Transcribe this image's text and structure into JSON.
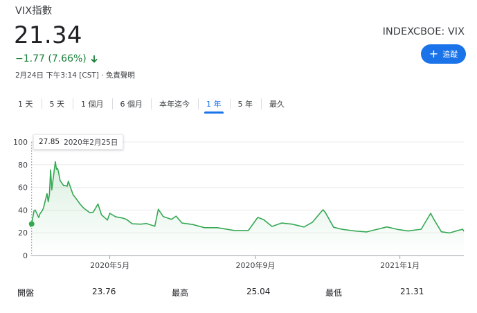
{
  "header": {
    "title": "VIX指數",
    "price": "21.34",
    "change": "−1.77 (7.66%)",
    "timestamp": "2月24日 下午3:14 [CST] · 免責聲明",
    "exchange": "INDEXCBOE: VIX",
    "follow_label": "追蹤",
    "follow_icon": "plus-icon",
    "change_color": "#188038",
    "accent_color": "#1a73e8"
  },
  "ranges": [
    "1 天",
    "5 天",
    "1 個月",
    "6 個月",
    "本年迄今",
    "1 年",
    "5 年",
    "最久"
  ],
  "active_range": "1 年",
  "tooltip": {
    "value": "27.85",
    "date": "2020年2月25日"
  },
  "stats": {
    "open_label": "開盤",
    "open_value": "23.76",
    "high_label": "最高",
    "high_value": "25.04",
    "low_label": "最低",
    "low_value": "21.31"
  },
  "chart_data": {
    "type": "line",
    "line_color": "#34a853",
    "ylim": [
      0,
      100
    ],
    "yticks": [
      0,
      20,
      40,
      60,
      80,
      100
    ],
    "xtick_labels": [
      "2020年5月",
      "2020年9月",
      "2021年1月"
    ],
    "xtick_dates": [
      "2020-05-01",
      "2020-09-01",
      "2021-01-01"
    ],
    "xlim": [
      "2020-02-24",
      "2021-02-24"
    ],
    "grid": true,
    "highlight": {
      "date": "2020-02-25",
      "value": 27.85
    },
    "points": [
      [
        "2020-02-24",
        25.0
      ],
      [
        "2020-02-25",
        27.85
      ],
      [
        "2020-02-27",
        39.2
      ],
      [
        "2020-02-28",
        40.1
      ],
      [
        "2020-03-02",
        33.4
      ],
      [
        "2020-03-03",
        36.8
      ],
      [
        "2020-03-05",
        39.6
      ],
      [
        "2020-03-06",
        41.9
      ],
      [
        "2020-03-09",
        54.5
      ],
      [
        "2020-03-10",
        47.3
      ],
      [
        "2020-03-11",
        53.9
      ],
      [
        "2020-03-12",
        75.5
      ],
      [
        "2020-03-13",
        57.8
      ],
      [
        "2020-03-16",
        82.7
      ],
      [
        "2020-03-17",
        75.9
      ],
      [
        "2020-03-18",
        76.5
      ],
      [
        "2020-03-19",
        72.0
      ],
      [
        "2020-03-20",
        66.0
      ],
      [
        "2020-03-23",
        61.6
      ],
      [
        "2020-03-24",
        61.7
      ],
      [
        "2020-03-26",
        61.0
      ],
      [
        "2020-03-27",
        65.5
      ],
      [
        "2020-03-31",
        53.5
      ],
      [
        "2020-04-02",
        50.9
      ],
      [
        "2020-04-06",
        45.2
      ],
      [
        "2020-04-09",
        41.7
      ],
      [
        "2020-04-14",
        37.8
      ],
      [
        "2020-04-17",
        38.2
      ],
      [
        "2020-04-21",
        45.4
      ],
      [
        "2020-04-24",
        35.9
      ],
      [
        "2020-04-29",
        31.2
      ],
      [
        "2020-05-01",
        37.2
      ],
      [
        "2020-05-06",
        34.1
      ],
      [
        "2020-05-12",
        33.0
      ],
      [
        "2020-05-15",
        31.9
      ],
      [
        "2020-05-20",
        27.9
      ],
      [
        "2020-05-27",
        27.6
      ],
      [
        "2020-06-01",
        28.2
      ],
      [
        "2020-06-08",
        25.8
      ],
      [
        "2020-06-11",
        40.8
      ],
      [
        "2020-06-15",
        34.4
      ],
      [
        "2020-06-22",
        31.8
      ],
      [
        "2020-06-26",
        34.7
      ],
      [
        "2020-07-01",
        28.6
      ],
      [
        "2020-07-10",
        27.3
      ],
      [
        "2020-07-20",
        24.5
      ],
      [
        "2020-07-31",
        24.5
      ],
      [
        "2020-08-14",
        22.1
      ],
      [
        "2020-08-26",
        22.0
      ],
      [
        "2020-09-03",
        33.6
      ],
      [
        "2020-09-08",
        31.5
      ],
      [
        "2020-09-15",
        25.6
      ],
      [
        "2020-09-23",
        28.6
      ],
      [
        "2020-10-02",
        27.6
      ],
      [
        "2020-10-12",
        25.1
      ],
      [
        "2020-10-19",
        29.2
      ],
      [
        "2020-10-28",
        40.3
      ],
      [
        "2020-10-30",
        38.0
      ],
      [
        "2020-11-06",
        24.9
      ],
      [
        "2020-11-13",
        23.1
      ],
      [
        "2020-11-24",
        21.6
      ],
      [
        "2020-12-04",
        20.8
      ],
      [
        "2020-12-21",
        25.2
      ],
      [
        "2020-12-31",
        22.8
      ],
      [
        "2021-01-08",
        21.6
      ],
      [
        "2021-01-19",
        23.2
      ],
      [
        "2021-01-27",
        37.2
      ],
      [
        "2021-01-29",
        33.1
      ],
      [
        "2021-02-05",
        20.9
      ],
      [
        "2021-02-12",
        19.9
      ],
      [
        "2021-02-19",
        22.1
      ],
      [
        "2021-02-23",
        23.1
      ],
      [
        "2021-02-24",
        21.34
      ]
    ]
  }
}
